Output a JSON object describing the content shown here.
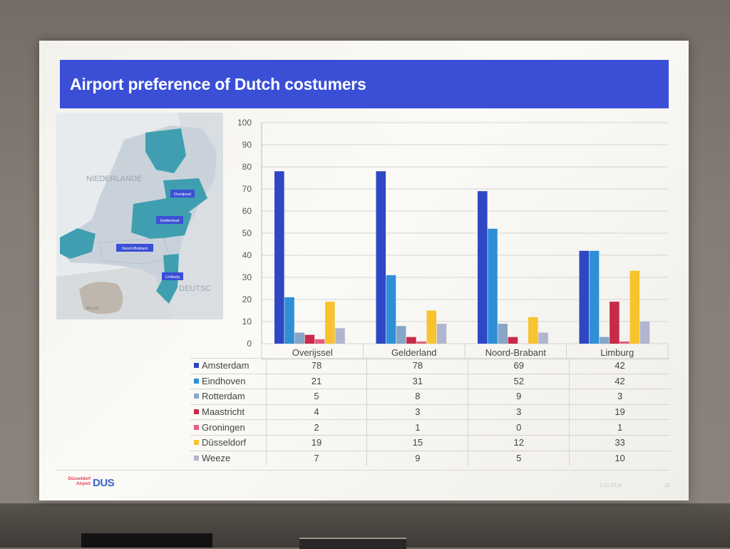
{
  "slide": {
    "title": "Airport preference of Dutch costumers"
  },
  "map": {
    "label_country": "NIEDERLANDE",
    "label_neighbor": "DEUTSC",
    "label_belgium": "BELGIË",
    "regions": [
      "Overijssel",
      "Gelderland",
      "Noord-Brabant",
      "Limburg"
    ],
    "colors": {
      "highlight": "#3f9fb0",
      "land": "#c9d2da",
      "sea": "#e7ebee",
      "belgium": "#bfb6ad"
    }
  },
  "chart_data": {
    "type": "bar",
    "categories": [
      "Overijssel",
      "Gelderland",
      "Noord-Brabant",
      "Limburg"
    ],
    "ylim": [
      0,
      100
    ],
    "yticks": [
      0,
      10,
      20,
      30,
      40,
      50,
      60,
      70,
      80,
      90,
      100
    ],
    "grid": true,
    "legend": "table-below",
    "series": [
      {
        "name": "Amsterdam",
        "color": "#2f47c4",
        "values": [
          78,
          78,
          69,
          42
        ]
      },
      {
        "name": "Eindhoven",
        "color": "#2f8fd6",
        "values": [
          21,
          31,
          52,
          42
        ]
      },
      {
        "name": "Rotterdam",
        "color": "#86a6c8",
        "values": [
          5,
          8,
          9,
          3
        ]
      },
      {
        "name": "Maastricht",
        "color": "#c92a48",
        "values": [
          4,
          3,
          3,
          19
        ]
      },
      {
        "name": "Groningen",
        "color": "#e0617e",
        "values": [
          2,
          1,
          0,
          1
        ]
      },
      {
        "name": "Düsseldorf",
        "color": "#f7c32e",
        "values": [
          19,
          15,
          12,
          33
        ]
      },
      {
        "name": "Weeze",
        "color": "#b1b6cf",
        "values": [
          7,
          9,
          5,
          10
        ]
      }
    ]
  },
  "footer": {
    "logo_line1": "Düsseldorf",
    "logo_line2": "Airport",
    "logo_mark": "DUS",
    "date": "2.10.2018",
    "page": "23"
  }
}
